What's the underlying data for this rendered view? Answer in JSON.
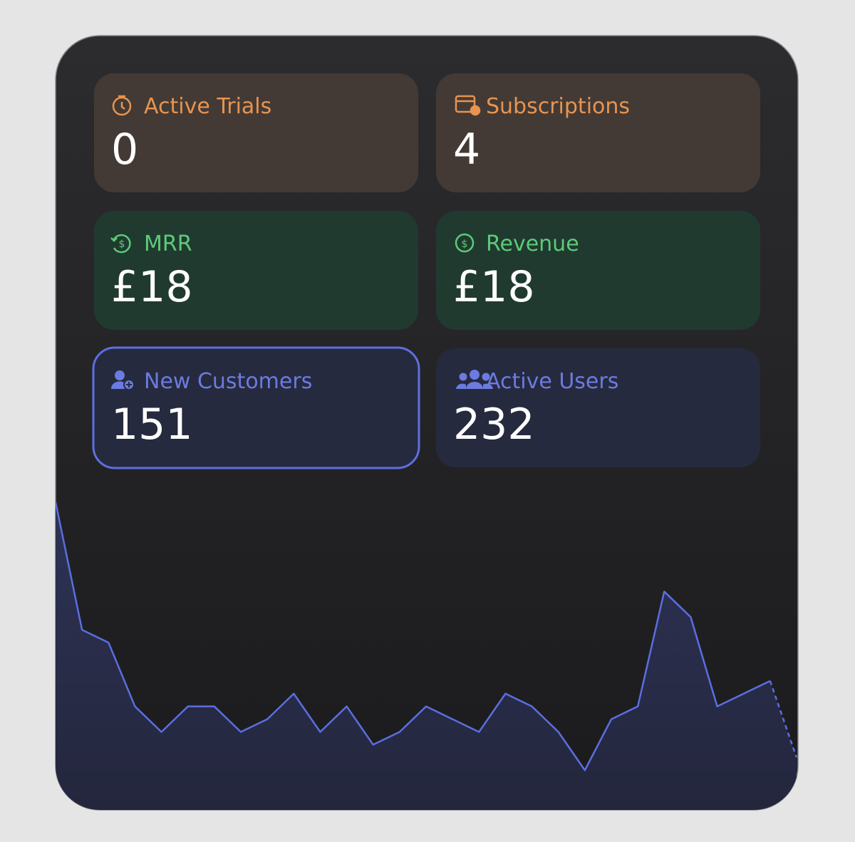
{
  "widget": {
    "cards": [
      {
        "label": "Active Trials",
        "value": "0",
        "color": "#e8944f",
        "background": "#433a35",
        "selected": false
      },
      {
        "label": "Subscriptions",
        "value": "4",
        "color": "#e8944f",
        "background": "#433a35",
        "selected": false
      },
      {
        "label": "MRR",
        "value": "£18",
        "color": "#5ccb78",
        "background": "#213a30",
        "selected": false
      },
      {
        "label": "Revenue",
        "value": "£18",
        "color": "#5ccb78",
        "background": "#213a30",
        "selected": false
      },
      {
        "label": "New Customers",
        "value": "151",
        "color": "#6b7be0",
        "background": "#262a3e",
        "selected": true
      },
      {
        "label": "Active Users",
        "value": "232",
        "color": "#6b7be0",
        "background": "#262a3e",
        "selected": false
      }
    ]
  },
  "chart_data": {
    "type": "area",
    "values": [
      22,
      12,
      11,
      6,
      4,
      6,
      6,
      4,
      5,
      7,
      4,
      6,
      3,
      4,
      6,
      5,
      4,
      7,
      6,
      4,
      1,
      5,
      6,
      15,
      13,
      6,
      7,
      8,
      2
    ],
    "ylim": [
      -2,
      22
    ],
    "color": "#5b6ee0",
    "dashed_last": true
  }
}
